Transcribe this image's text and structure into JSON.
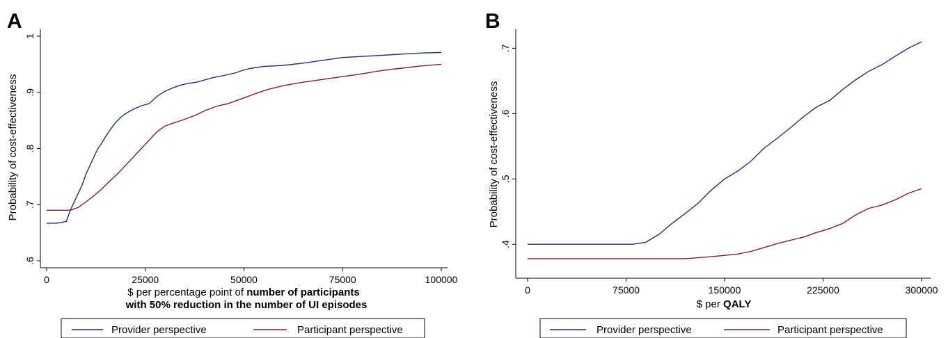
{
  "chart_data": [
    {
      "type": "line",
      "panel_label": "A",
      "xlabel": "$ per percentage point of",
      "xlabel_bold_1": "number of participants",
      "xlabel_bold_2": "with 50% reduction in the number of UI episodes",
      "ylabel": "Probability of cost-effectiveness",
      "xlim": [
        0,
        100000
      ],
      "ylim": [
        0.6,
        1.0
      ],
      "x_ticks": [
        0,
        25000,
        50000,
        75000,
        100000
      ],
      "x_tick_labels": [
        "0",
        "25000",
        "50000",
        "75000",
        "100000"
      ],
      "y_ticks": [
        0.6,
        0.7,
        0.8,
        0.9,
        1.0
      ],
      "y_tick_labels": [
        ".6",
        ".7",
        ".8",
        ".9",
        "1"
      ],
      "legend_position": "bottom",
      "series": [
        {
          "name": "Provider perspective",
          "color": "#1f2f6b",
          "x": [
            0,
            2500,
            5000,
            6000,
            7000,
            8000,
            9000,
            10000,
            11000,
            12000,
            13000,
            14000,
            15000,
            16000,
            17000,
            18000,
            19000,
            20000,
            22000,
            24000,
            26000,
            28000,
            30000,
            32000,
            34000,
            36000,
            38000,
            40000,
            42000,
            45000,
            48000,
            50000,
            52000,
            55000,
            60000,
            65000,
            70000,
            75000,
            80000,
            85000,
            90000,
            95000,
            100000
          ],
          "y": [
            0.667,
            0.667,
            0.67,
            0.69,
            0.705,
            0.72,
            0.735,
            0.755,
            0.77,
            0.785,
            0.8,
            0.81,
            0.822,
            0.832,
            0.842,
            0.85,
            0.857,
            0.862,
            0.87,
            0.876,
            0.88,
            0.893,
            0.902,
            0.908,
            0.913,
            0.916,
            0.918,
            0.922,
            0.926,
            0.93,
            0.935,
            0.94,
            0.943,
            0.946,
            0.948,
            0.952,
            0.957,
            0.962,
            0.964,
            0.966,
            0.968,
            0.97,
            0.971
          ]
        },
        {
          "name": "Participant perspective",
          "color": "#7a1f2b",
          "x": [
            0,
            3000,
            6000,
            8000,
            10000,
            12000,
            14000,
            16000,
            18000,
            20000,
            22000,
            24000,
            26000,
            28000,
            30000,
            32000,
            35000,
            38000,
            40000,
            43000,
            46000,
            50000,
            53000,
            56000,
            60000,
            65000,
            70000,
            75000,
            80000,
            85000,
            90000,
            95000,
            100000
          ],
          "y": [
            0.69,
            0.69,
            0.69,
            0.695,
            0.705,
            0.716,
            0.728,
            0.742,
            0.755,
            0.77,
            0.785,
            0.8,
            0.815,
            0.83,
            0.84,
            0.845,
            0.852,
            0.86,
            0.867,
            0.875,
            0.88,
            0.89,
            0.898,
            0.905,
            0.912,
            0.918,
            0.923,
            0.928,
            0.933,
            0.939,
            0.943,
            0.947,
            0.95
          ]
        }
      ]
    },
    {
      "type": "line",
      "panel_label": "B",
      "xlabel": "$ per",
      "xlabel_bold_1": "QALY",
      "ylabel": "Probability of cost-effectiveness",
      "xlim": [
        0,
        300000
      ],
      "ylim": [
        0.38,
        0.71
      ],
      "x_ticks": [
        0,
        75000,
        150000,
        225000,
        300000
      ],
      "x_tick_labels": [
        "0",
        "75000",
        "150000",
        "225000",
        "300000"
      ],
      "y_ticks": [
        0.4,
        0.5,
        0.6,
        0.7
      ],
      "y_tick_labels": [
        ".4",
        ".5",
        ".6",
        ".7"
      ],
      "legend_position": "bottom",
      "series": [
        {
          "name": "Provider perspective",
          "color": "#1f2f6b",
          "x": [
            0,
            50000,
            80000,
            90000,
            100000,
            110000,
            120000,
            130000,
            140000,
            150000,
            160000,
            170000,
            180000,
            190000,
            200000,
            210000,
            220000,
            230000,
            240000,
            250000,
            260000,
            270000,
            280000,
            290000,
            300000
          ],
          "y": [
            0.4,
            0.4,
            0.4,
            0.403,
            0.415,
            0.432,
            0.447,
            0.463,
            0.483,
            0.5,
            0.512,
            0.527,
            0.547,
            0.562,
            0.578,
            0.595,
            0.61,
            0.62,
            0.637,
            0.652,
            0.665,
            0.675,
            0.688,
            0.7,
            0.71
          ]
        },
        {
          "name": "Participant perspective",
          "color": "#7a1f2b",
          "x": [
            0,
            60000,
            120000,
            140000,
            160000,
            170000,
            180000,
            190000,
            200000,
            210000,
            220000,
            230000,
            240000,
            250000,
            260000,
            270000,
            280000,
            290000,
            300000
          ],
          "y": [
            0.378,
            0.378,
            0.378,
            0.381,
            0.385,
            0.389,
            0.395,
            0.401,
            0.406,
            0.411,
            0.418,
            0.424,
            0.432,
            0.445,
            0.455,
            0.46,
            0.468,
            0.478,
            0.485
          ]
        }
      ]
    }
  ]
}
